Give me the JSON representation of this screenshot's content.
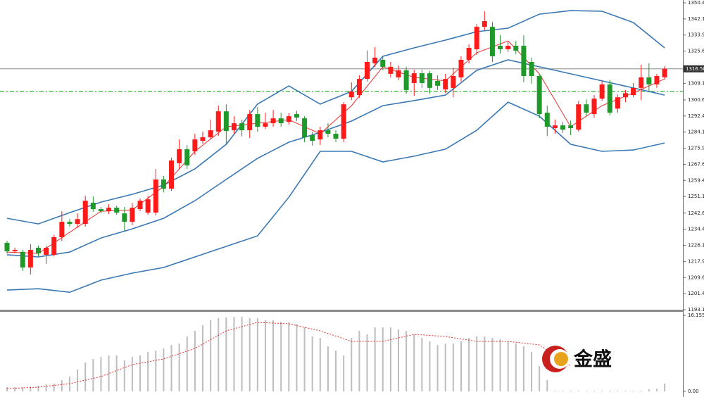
{
  "chart_data": [
    {
      "type": "candlestick",
      "ylim": [
        1193.15,
        1351.84
      ],
      "yticks": [
        {
          "value": 1350.4,
          "label": "1350.40"
        },
        1342.15,
        {
          "value": 1333.9,
          "label": "1333.90"
        },
        1325.65,
        1309.15,
        1300.65,
        {
          "value": 1292.4,
          "label": "1292.40"
        },
        1284.15,
        {
          "value": 1275.9,
          "label": "1275.90"
        },
        1267.65,
        {
          "value": 1259.4,
          "label": "1259.40"
        },
        1251.15,
        1242.65,
        {
          "value": 1234.4,
          "label": "1234.40"
        },
        1226.15,
        {
          "value": 1217.9,
          "label": "1217.90"
        },
        1209.65,
        {
          "value": 1201.4,
          "label": "1201.40"
        },
        1193.15
      ],
      "up_color": "#ff1a1a",
      "down_color": "#1f9a2a",
      "open": [
        1227.4,
        1223.1,
        1222.8,
        1214.8,
        1224.9,
        1221.3,
        1221.3,
        1230.3,
        1238.2,
        1237.1,
        1237.1,
        1248.0,
        1244.7,
        1243.6,
        1245.4,
        1242.5,
        1238.2,
        1244.7,
        1242.9,
        1242.9,
        1259.9,
        1255.2,
        1268.2,
        1275.4,
        1274.3,
        1279.7,
        1281.5,
        1284.4,
        1294.8,
        1285.1,
        1288.7,
        1285.1,
        1293.4,
        1286.9,
        1288.7,
        1291.2,
        1289.4,
        1293.4,
        1291.2,
        1282.6,
        1280.4,
        1285.1,
        1283.3,
        1280.8,
        1302.0,
        1303.1,
        1311.4,
        1319.4,
        1321.2,
        1314.0,
        1312.2,
        1315.8,
        1309.3,
        1314.3,
        1314.3,
        1310.4,
        1306.0,
        1306.8,
        1312.2,
        1321.2,
        1326.6,
        1338.1,
        1338.1,
        1328.4,
        1326.6,
        1328.4,
        1328.4,
        1320.1,
        1312.9,
        1294.1,
        1286.2,
        1287.6,
        1287.6,
        1285.4,
        1298.4,
        1293.4,
        1301.3,
        1308.6,
        1296.2,
        1302.0,
        1303.1,
        1306.8,
        1312.2,
        1308.6,
        1312.2
      ],
      "high": [
        1228.5,
        1225.0,
        1223.8,
        1226.7,
        1226.0,
        1226.0,
        1231.5,
        1243.6,
        1239.6,
        1242.5,
        1251.5,
        1251.2,
        1245.8,
        1247.2,
        1246.5,
        1245.8,
        1247.9,
        1250.1,
        1251.5,
        1265.3,
        1261.7,
        1271.1,
        1280.4,
        1277.5,
        1283.3,
        1284.4,
        1290.5,
        1297.7,
        1298.4,
        1292.3,
        1290.5,
        1295.5,
        1296.9,
        1294.1,
        1295.5,
        1294.1,
        1293.8,
        1295.1,
        1292.3,
        1284.4,
        1286.9,
        1288.7,
        1285.1,
        1299.5,
        1309.7,
        1313.3,
        1326.0,
        1327.7,
        1323.0,
        1320.1,
        1318.3,
        1317.6,
        1316.1,
        1316.1,
        1315.4,
        1313.3,
        1314.0,
        1317.2,
        1323.0,
        1329.1,
        1339.5,
        1346.0,
        1340.6,
        1333.8,
        1330.2,
        1330.9,
        1333.8,
        1322.3,
        1314.0,
        1297.7,
        1290.5,
        1289.4,
        1290.1,
        1300.2,
        1300.9,
        1303.1,
        1310.4,
        1310.8,
        1303.4,
        1305.7,
        1309.3,
        1318.7,
        1319.4,
        1314.0,
        1318.0
      ],
      "low": [
        1221.9,
        1222.0,
        1213.0,
        1211.2,
        1220.5,
        1216.6,
        1220.5,
        1228.5,
        1235.7,
        1235.0,
        1235.7,
        1243.3,
        1242.5,
        1242.2,
        1241.8,
        1233.5,
        1236.4,
        1243.6,
        1241.8,
        1241.4,
        1253.3,
        1254.1,
        1265.3,
        1265.3,
        1272.5,
        1278.2,
        1280.4,
        1282.2,
        1277.9,
        1283.3,
        1281.9,
        1281.1,
        1284.4,
        1285.8,
        1286.9,
        1286.9,
        1288.0,
        1289.8,
        1279.0,
        1277.2,
        1277.5,
        1281.5,
        1279.0,
        1279.0,
        1300.5,
        1301.6,
        1310.1,
        1317.6,
        1315.8,
        1312.2,
        1310.8,
        1303.8,
        1302.7,
        1306.8,
        1303.8,
        1305.7,
        1304.1,
        1302.0,
        1310.1,
        1319.4,
        1323.7,
        1336.3,
        1320.1,
        1324.5,
        1325.2,
        1324.1,
        1309.7,
        1309.0,
        1291.2,
        1282.2,
        1283.3,
        1283.7,
        1282.6,
        1284.4,
        1292.3,
        1291.6,
        1300.2,
        1292.7,
        1294.1,
        1299.5,
        1302.0,
        1300.5,
        1304.5,
        1306.8,
        1311.1
      ],
      "close": [
        1223.1,
        1223.8,
        1214.8,
        1223.8,
        1222.0,
        1224.9,
        1230.3,
        1238.2,
        1237.1,
        1239.6,
        1249.0,
        1244.7,
        1243.6,
        1245.4,
        1242.9,
        1238.2,
        1245.4,
        1249.0,
        1249.7,
        1259.9,
        1255.2,
        1269.6,
        1275.4,
        1267.1,
        1280.4,
        1281.5,
        1285.1,
        1294.8,
        1284.7,
        1288.7,
        1285.1,
        1293.4,
        1286.9,
        1288.7,
        1291.2,
        1288.7,
        1292.3,
        1291.6,
        1281.5,
        1279.7,
        1285.1,
        1283.3,
        1280.8,
        1298.4,
        1305.0,
        1311.4,
        1320.1,
        1322.3,
        1317.6,
        1317.6,
        1315.8,
        1305.7,
        1314.3,
        1309.3,
        1306.8,
        1307.9,
        1311.4,
        1312.9,
        1321.2,
        1327.3,
        1338.1,
        1341.0,
        1323.0,
        1326.6,
        1328.4,
        1325.9,
        1312.9,
        1312.9,
        1293.4,
        1286.9,
        1287.6,
        1285.4,
        1286.2,
        1298.4,
        1294.1,
        1301.3,
        1308.6,
        1294.1,
        1302.0,
        1304.1,
        1306.8,
        1312.2,
        1308.6,
        1312.9,
        1316.58
      ],
      "lines": {
        "x": [
          0,
          4,
          8,
          12,
          16,
          20,
          24,
          28,
          32,
          36,
          40,
          44,
          48,
          52,
          56,
          60,
          64,
          68,
          72,
          76,
          80,
          84
        ],
        "series": [
          {
            "color": "#3a78b5",
            "values": [
              1240.0,
              1237.1,
              1242.9,
              1248.3,
              1252.3,
              1257.0,
              1265.3,
              1277.9,
              1298.5,
              1307.8,
              1298.5,
              1305.0,
              1323.0,
              1327.3,
              1331.3,
              1335.6,
              1337.4,
              1344.6,
              1346.4,
              1346.1,
              1340.3,
              1327.3
            ]
          },
          {
            "color": "#3a78b5",
            "values": [
              1221.3,
              1220.2,
              1222.7,
              1229.9,
              1234.6,
              1240.0,
              1249.0,
              1259.9,
              1270.7,
              1279.0,
              1284.0,
              1289.8,
              1297.7,
              1300.3,
              1303.1,
              1315.8,
              1321.2,
              1317.6,
              1314.0,
              1310.4,
              1306.8,
              1303.1
            ]
          },
          {
            "color": "#3a78b5",
            "values": [
              1203.2,
              1203.9,
              1202.1,
              1208.3,
              1211.9,
              1214.8,
              1220.2,
              1225.6,
              1231.0,
              1250.8,
              1274.3,
              1274.3,
              1268.9,
              1271.8,
              1275.4,
              1285.1,
              1299.5,
              1292.3,
              1277.9,
              1274.3,
              1275.0,
              1278.6
            ]
          },
          {
            "color": "#e8312f",
            "values": [
              1222.7,
              1222.0,
              1232.8,
              1243.6,
              1244.3,
              1256.3,
              1274.3,
              1286.9,
              1288.7,
              1290.5,
              1283.3,
              1297.7,
              1317.6,
              1312.2,
              1310.4,
              1324.8,
              1330.9,
              1314.0,
              1286.9,
              1297.7,
              1304.2,
              1311.4
            ]
          }
        ]
      },
      "hlines": [
        {
          "value": 1316.58,
          "color": "#a0a0a0",
          "style": "solid"
        },
        {
          "value": 1305.0,
          "color": "#2db52d",
          "style": "dashdot"
        }
      ],
      "last_price": 1316.58
    },
    {
      "type": "bar",
      "ylim": [
        0,
        16.155
      ],
      "yticks": [
        16.155,
        {
          "value": 0,
          "label": "0.00"
        }
      ],
      "color": "#bdbdbd",
      "values": [
        0.9,
        0.9,
        0.9,
        1.05,
        1.2,
        1.5,
        1.65,
        2.39,
        3.14,
        4.64,
        6.13,
        6.88,
        7.33,
        7.63,
        7.63,
        6.58,
        7.33,
        7.63,
        8.38,
        8.68,
        9.12,
        9.87,
        10.17,
        11.67,
        12.86,
        14.06,
        15.11,
        15.56,
        15.71,
        15.86,
        15.86,
        15.56,
        15.56,
        15.11,
        15.11,
        14.81,
        14.66,
        14.36,
        13.61,
        11.67,
        11.37,
        9.57,
        8.68,
        7.63,
        11.37,
        12.86,
        12.12,
        13.61,
        13.61,
        13.61,
        13.16,
        12.86,
        12.12,
        11.37,
        10.62,
        9.87,
        10.17,
        10.17,
        10.62,
        11.37,
        11.67,
        11.67,
        11.37,
        11.07,
        10.62,
        10.17,
        9.57,
        8.38,
        5.39,
        2.39,
        0.15,
        0.15,
        0.15,
        0.15,
        0.15,
        0.15,
        0.15,
        0.15,
        0.15,
        0.15,
        0.15,
        0.15,
        0.45,
        0.6,
        1.65
      ],
      "signal": {
        "color": "#e8312f",
        "x": [
          0,
          4,
          8,
          12,
          16,
          20,
          24,
          28,
          32,
          36,
          40,
          44,
          48,
          52,
          56,
          60,
          64,
          68,
          72,
          76,
          80,
          84
        ],
        "values": [
          0.6,
          0.9,
          1.65,
          3.14,
          5.68,
          6.88,
          9.12,
          12.86,
          14.66,
          14.36,
          12.86,
          10.62,
          10.62,
          12.12,
          11.67,
          10.62,
          10.62,
          9.87,
          5.39,
          null,
          null,
          null
        ]
      }
    }
  ],
  "logo": {
    "text": "金盛"
  }
}
